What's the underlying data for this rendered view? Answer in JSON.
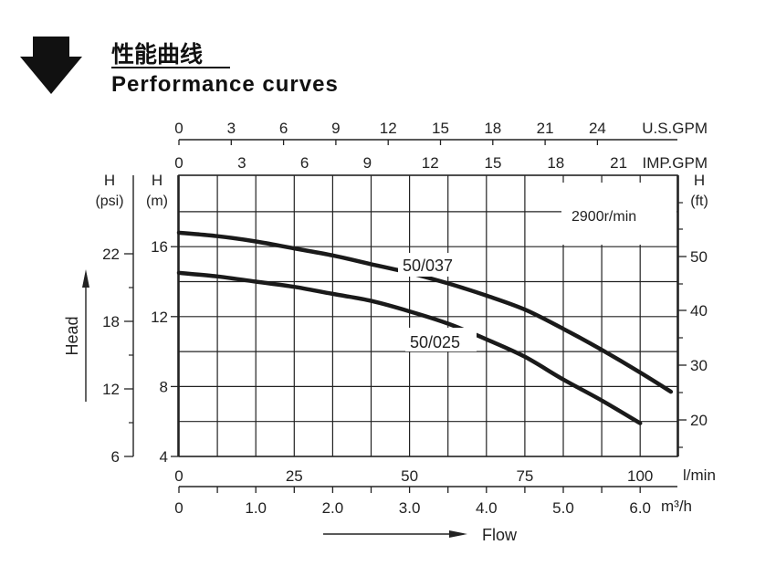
{
  "header": {
    "title_cn": "性能曲线",
    "title_en": "Performance curves"
  },
  "chart_data": {
    "type": "line",
    "speed_label": "2900r/min",
    "series": [
      {
        "name": "50/037",
        "x": [
          0,
          0.5,
          1.0,
          1.5,
          2.0,
          2.5,
          3.0,
          3.5,
          4.0,
          4.5,
          5.0,
          5.5,
          6.0,
          6.4
        ],
        "y": [
          16.8,
          16.6,
          16.3,
          15.9,
          15.5,
          15.0,
          14.5,
          13.9,
          13.2,
          12.4,
          11.3,
          10.1,
          8.8,
          7.7
        ]
      },
      {
        "name": "50/025",
        "x": [
          0,
          0.5,
          1.0,
          1.5,
          2.0,
          2.5,
          3.0,
          3.5,
          4.0,
          4.5,
          5.0,
          5.5,
          6.0
        ],
        "y": [
          14.5,
          14.3,
          14.0,
          13.7,
          13.3,
          12.9,
          12.3,
          11.6,
          10.7,
          9.7,
          8.4,
          7.2,
          5.9
        ]
      }
    ],
    "axes": {
      "bottom_m3h": {
        "label": "m³/h",
        "ticks": [
          "0",
          "1.0",
          "2.0",
          "3.0",
          "4.0",
          "5.0",
          "6.0"
        ],
        "range": [
          0,
          6.5
        ]
      },
      "bottom_lmin": {
        "label": "l/min",
        "ticks": [
          "0",
          "25",
          "50",
          "75",
          "100"
        ]
      },
      "top_usgpm": {
        "label": "U.S.GPM",
        "ticks": [
          "0",
          "3",
          "6",
          "9",
          "12",
          "15",
          "18",
          "21",
          "24"
        ]
      },
      "top_impgpm": {
        "label": "IMP.GPM",
        "ticks": [
          "0",
          "3",
          "6",
          "9",
          "12",
          "15",
          "18",
          "21"
        ]
      },
      "left_m": {
        "label_top": "H",
        "label_unit": "(m)",
        "ticks": [
          "4",
          "8",
          "12",
          "16"
        ],
        "range": [
          4,
          18
        ]
      },
      "left_psi": {
        "label_top": "H",
        "label_unit": "(psi)",
        "ticks": [
          "6",
          "12",
          "18",
          "22"
        ]
      },
      "right_ft": {
        "label_top": "H",
        "label_unit": "(ft)",
        "ticks": [
          "20",
          "30",
          "40",
          "50"
        ]
      }
    },
    "head_label": "Head",
    "flow_label": "Flow",
    "grid": true
  }
}
